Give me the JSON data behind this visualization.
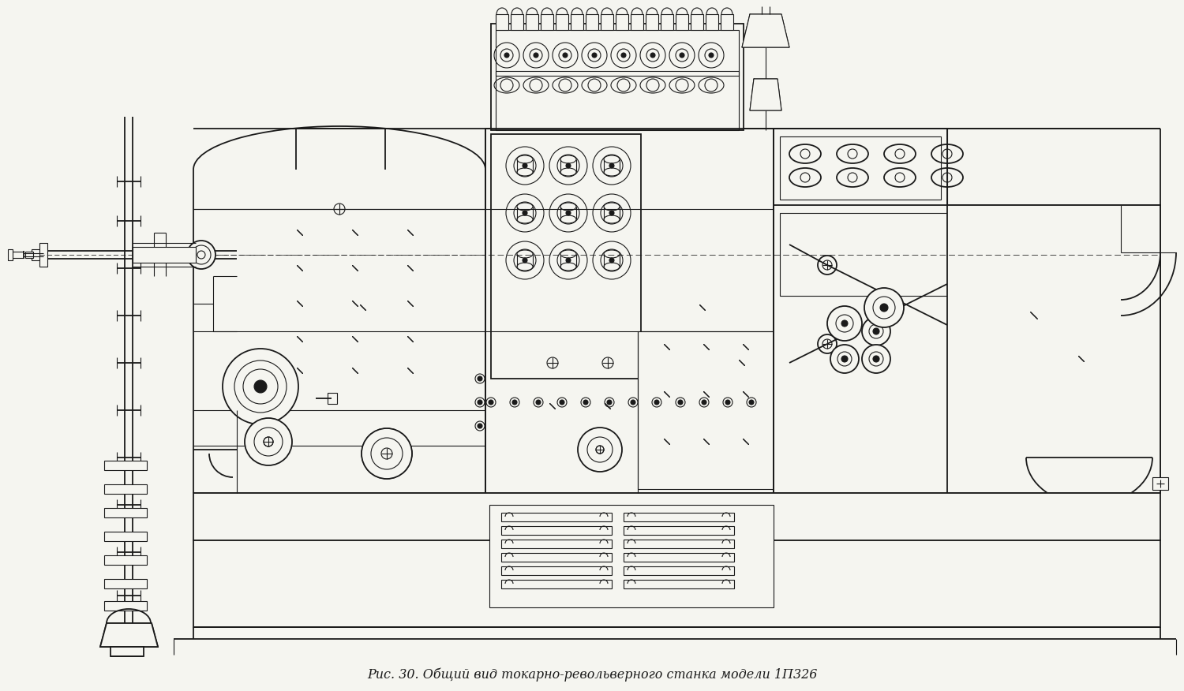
{
  "caption": "Рис. 30. Общий вид токарно-револьверного станка модели 1П326",
  "caption_fontsize": 11.5,
  "bg_color": "#f5f5f0",
  "fig_width": 15.0,
  "fig_height": 8.76,
  "dpi": 100,
  "lc": "#1a1a1a",
  "lw": 1.3,
  "tlw": 0.8,
  "thklw": 2.2
}
